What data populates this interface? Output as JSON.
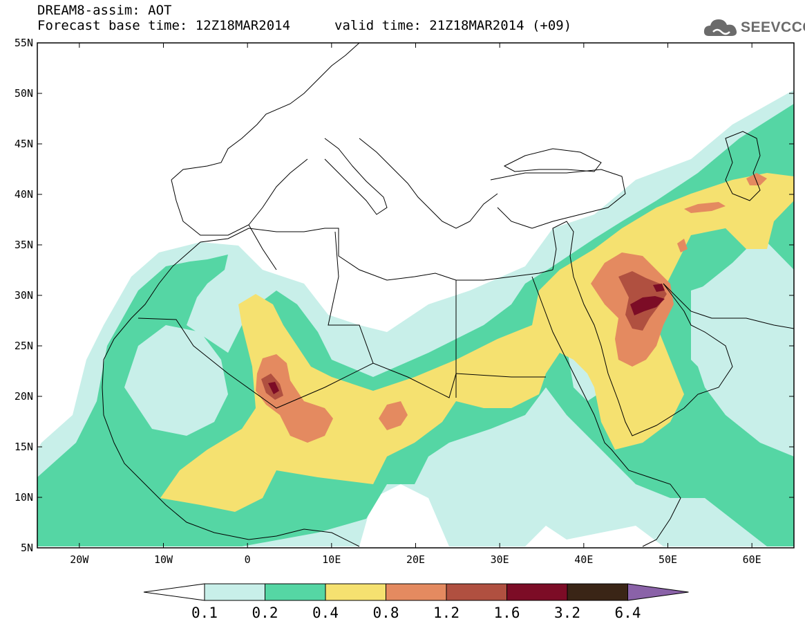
{
  "header": {
    "title_line1": "DREAM8-assim: AOT",
    "base_time": "Forecast base time: 12Z18MAR2014",
    "valid_time": "valid time: 21Z18MAR2014 (+09)",
    "logo_text": "SEEVCCC",
    "logo_icon": "cloud-icon"
  },
  "map": {
    "lon_labels": [
      "20W",
      "10W",
      "0",
      "10E",
      "20E",
      "30E",
      "40E",
      "50E",
      "60E"
    ],
    "lat_labels": [
      "55N",
      "50N",
      "45N",
      "40N",
      "35N",
      "30N",
      "25N",
      "20N",
      "15N",
      "10N",
      "5N"
    ],
    "lon_range": [
      -25,
      65
    ],
    "lat_range": [
      5,
      55
    ]
  },
  "colorbar": {
    "labels": [
      "0.1",
      "0.2",
      "0.4",
      "0.8",
      "1.2",
      "1.6",
      "3.2",
      "6.4"
    ],
    "colors": [
      "#ffffff",
      "#c8efe9",
      "#55d6a4",
      "#f5e170",
      "#e48a60",
      "#b05040",
      "#7c0c26",
      "#3a2516",
      "#8a62a8"
    ]
  },
  "chart_data": {
    "type": "heatmap",
    "title": "DREAM8-assim: AOT",
    "levels": [
      0.1,
      0.2,
      0.4,
      0.8,
      1.2,
      1.6,
      3.2,
      6.4
    ],
    "xlim": [
      -25,
      65
    ],
    "ylim": [
      5,
      55
    ]
  }
}
